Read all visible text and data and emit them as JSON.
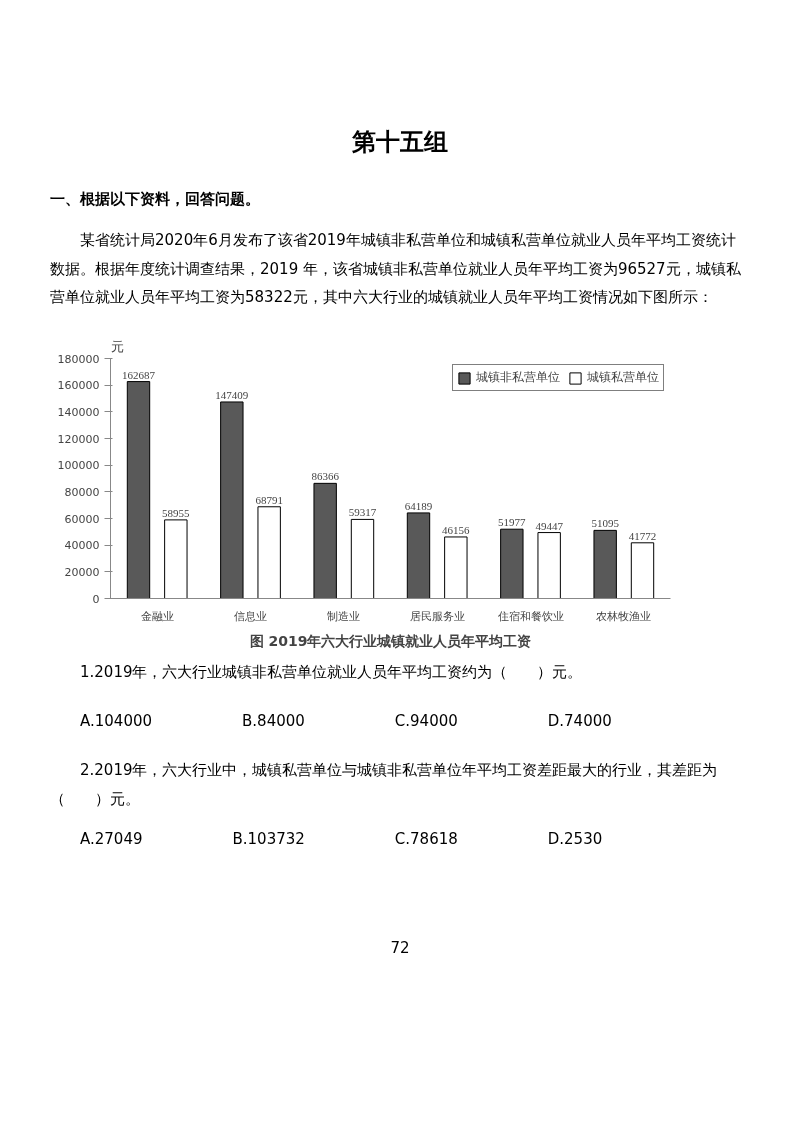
{
  "chart_data": {
    "type": "bar",
    "title": "图 2019年六大行业城镇就业人员年平均工资",
    "ylabel": "元",
    "categories": [
      "金融业",
      "信息业",
      "制造业",
      "居民服务业",
      "住宿和餐饮业",
      "农林牧渔业"
    ],
    "series": [
      {
        "name": "城镇非私营单位",
        "color": "#595959",
        "values": [
          162687,
          147409,
          86366,
          64189,
          51977,
          51095
        ]
      },
      {
        "name": "城镇私营单位",
        "color": "#ffffff",
        "values": [
          58955,
          68791,
          59317,
          46156,
          49447,
          41772
        ]
      }
    ],
    "ylim": [
      0,
      180000
    ],
    "yticks": [
      0,
      20000,
      40000,
      60000,
      80000,
      100000,
      120000,
      140000,
      160000,
      180000
    ],
    "grid": false,
    "legend": "top right",
    "data_labels": true,
    "annotations": [
      "第十五组",
      "一、根据以下资料，回答问题。",
      "某省统计局2020年6月发布了该省2019年城镇非私营单位和城镇私营单位就业人员年平均工资统计数据。根据年度统计调查结果，2019 年，该省城镇非私营单位就业人员年平均工资为96527元，城镇私营单位就业人员年平均工资为58322元，其中六大行业的城镇就业人员年平均工资情况如下图所示：",
      "1.2019年，六大行业城镇非私营单位就业人员年平均工资约为（　　）元。",
      "A.104000　　　　　　B.84000　　　　　　C.94000　　　　　　D.74000",
      "2.2019年，六大行业中，城镇私营单位与城镇非私营单位年平均工资差距最大的行业，其差距为（　　）元。",
      "A.27049　　　　　　B.103732　　　　　　C.78618　　　　　　D.2530",
      "72"
    ]
  }
}
